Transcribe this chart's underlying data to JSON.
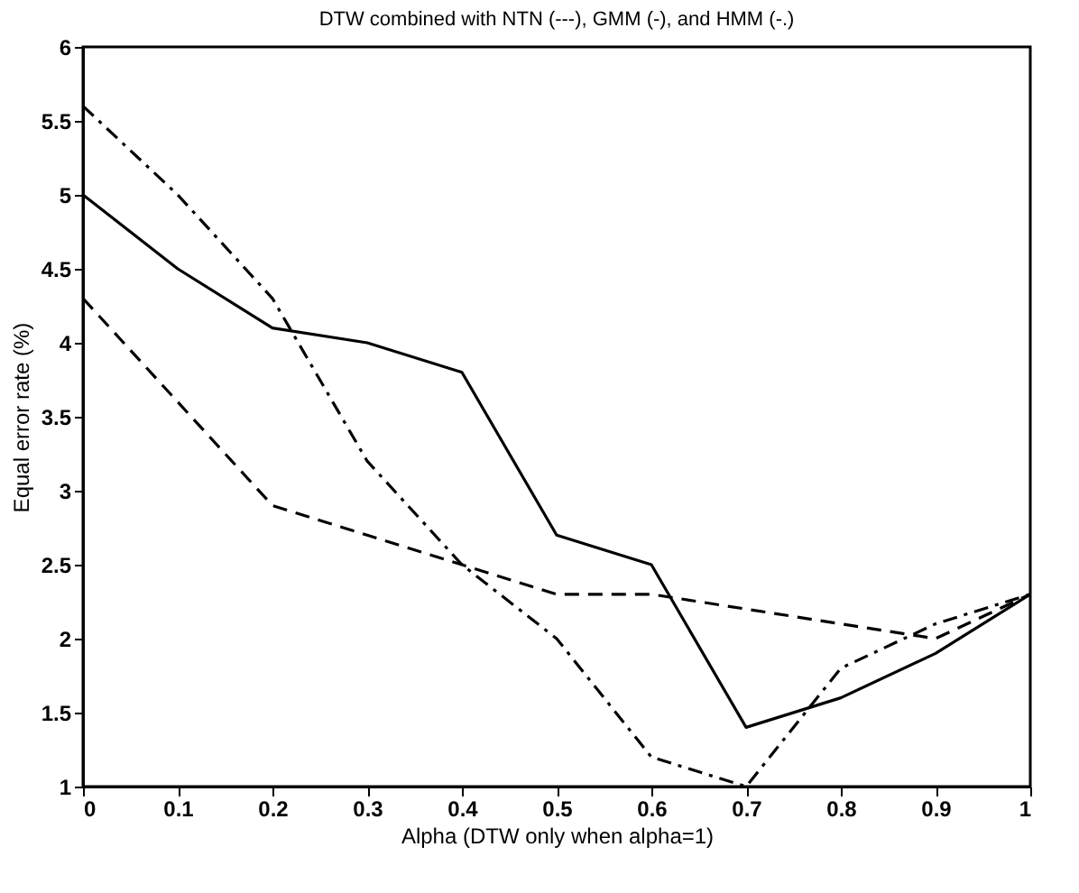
{
  "chart_data": {
    "type": "line",
    "title": "DTW combined with NTN (---), GMM (-), and HMM (-.)",
    "xlabel": "Alpha (DTW only when alpha=1)",
    "ylabel": "Equal error rate (%)",
    "x": [
      0,
      0.1,
      0.2,
      0.3,
      0.4,
      0.5,
      0.6,
      0.7,
      0.8,
      0.9,
      1
    ],
    "series": [
      {
        "color": "#000000",
        "line_style": "solid",
        "values": [
          5.0,
          4.5,
          4.1,
          4.0,
          3.8,
          2.7,
          2.5,
          1.4,
          1.6,
          1.9,
          2.3
        ]
      },
      {
        "color": "#000000",
        "line_style": "dashed",
        "values": [
          4.3,
          3.6,
          2.9,
          2.7,
          2.5,
          2.3,
          2.3,
          2.2,
          2.1,
          2.0,
          2.3
        ]
      },
      {
        "color": "#000000",
        "line_style": "dashdot",
        "values": [
          5.6,
          5.0,
          4.3,
          3.2,
          2.5,
          2.0,
          1.2,
          1.0,
          1.8,
          2.1,
          2.3
        ]
      }
    ],
    "xlim": [
      0,
      1
    ],
    "xticks": [
      0,
      0.1,
      0.2,
      0.3,
      0.4,
      0.5,
      0.6,
      0.7,
      0.8,
      0.9,
      1
    ],
    "ylim": [
      1,
      6
    ],
    "yticks": [
      1,
      1.5,
      2,
      2.5,
      3,
      3.5,
      4,
      4.5,
      5,
      5.5,
      6
    ],
    "grid": false,
    "marker": "none"
  }
}
